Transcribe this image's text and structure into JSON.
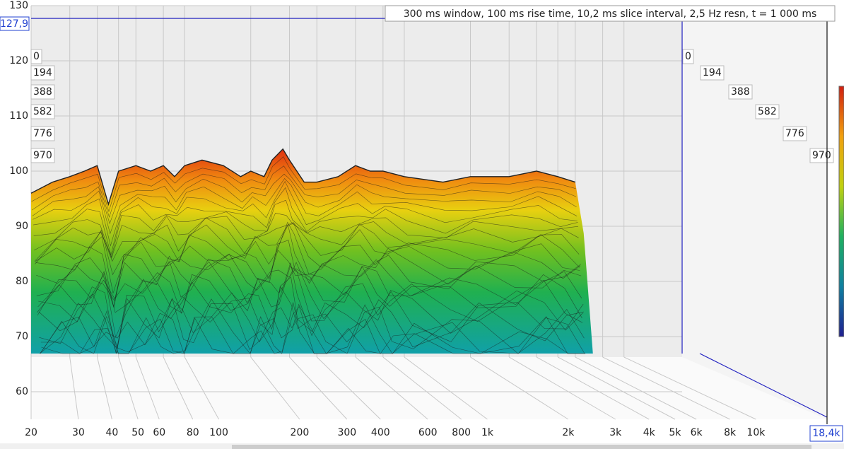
{
  "chart_data": {
    "type": "waterfall",
    "title": "300 ms window, 100 ms rise time, 10,2 ms slice interval, 2,5 Hz resn, t = 1 000 ms",
    "log_x": true,
    "grid": true,
    "xlim": [
      20,
      18400
    ],
    "xticks": [
      20,
      30,
      40,
      50,
      60,
      80,
      100,
      200,
      300,
      400,
      600,
      800,
      {
        "value": 1000,
        "label": "1k"
      },
      {
        "value": 2000,
        "label": "2k"
      },
      {
        "value": 3000,
        "label": "3k"
      },
      {
        "value": 4000,
        "label": "4k"
      },
      {
        "value": 5000,
        "label": "5k"
      },
      {
        "value": 6000,
        "label": "6k"
      },
      {
        "value": 8000,
        "label": "8k"
      },
      {
        "value": 10000,
        "label": "10k"
      }
    ],
    "ylim": [
      55,
      130
    ],
    "yticks": [
      60,
      70,
      80,
      90,
      100,
      110,
      120,
      130
    ],
    "time_ticks": [
      0,
      194,
      388,
      582,
      776,
      970
    ],
    "cursor": {
      "y_label": "127,9",
      "x_label": "18,4k"
    },
    "x": [
      20,
      25,
      30,
      35,
      40,
      45,
      50,
      60,
      70,
      80,
      90,
      100,
      120,
      150,
      180,
      200,
      230,
      250,
      280,
      300,
      350,
      400,
      500,
      600,
      700,
      800,
      1000,
      1500,
      2000,
      3000,
      4000,
      5000,
      6000
    ],
    "values": [
      96,
      98,
      99,
      100,
      101,
      94,
      100,
      101,
      100,
      101,
      99,
      101,
      102,
      101,
      99,
      100,
      99,
      102,
      104,
      102,
      98,
      98,
      99,
      101,
      100,
      100,
      99,
      98,
      99,
      99,
      100,
      99,
      98
    ]
  }
}
